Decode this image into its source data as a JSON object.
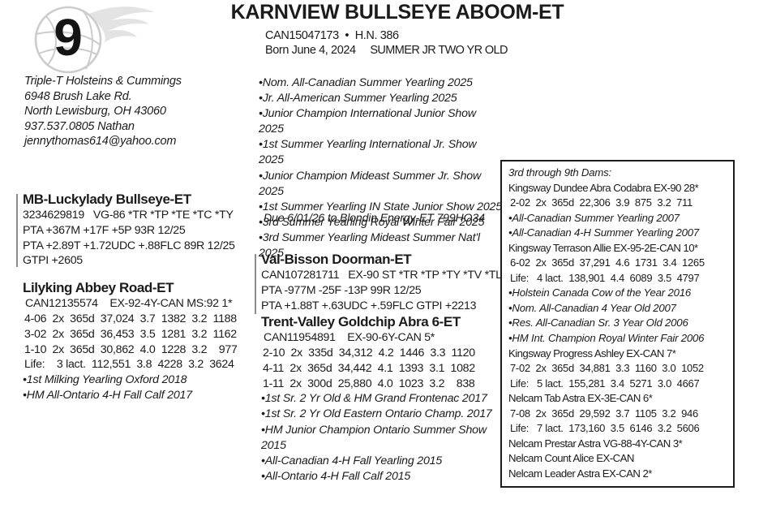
{
  "colors": {
    "text": "#1b1b1b",
    "logo_gray": "#dcdcdc",
    "rule_gray": "#8d8d8d",
    "box_border": "#1c1c1c"
  },
  "header": {
    "lot_number": "9",
    "title": "KARNVIEW BULLSEYE ABOOM-ET",
    "registration": "CAN15047173",
    "separator": "•",
    "herd_number": "H.N. 386",
    "born": "Born June 4, 2024",
    "age_class": "SUMMER JR TWO YR OLD"
  },
  "consignor": {
    "name": "Triple-T Holsteins & Cummings",
    "address1": "6948 Brush Lake Rd.",
    "address2": "North Lewisburg, OH  43060",
    "phone": "937.537.0805 Nathan",
    "email": "jennythomas614@yahoo.com"
  },
  "sire": {
    "name": "MB-Luckylady Bullseye-ET",
    "lines": [
      "3234629819   VG-86 *TR *TP *TE *TC *TY",
      "PTA +367M +17F +5P 93R 12/25",
      "PTA +2.89T +1.72UDC +.88FLC 89R 12/25",
      "GTPI +2605"
    ]
  },
  "dam": {
    "name": "Lilyking Abbey Road-ET",
    "id_line": "CAN12135574    EX-92-4Y-CAN MS:92 1*",
    "records": [
      "4-06  2x  365d  37,024  3.7  1382  3.2  1188",
      "3-02  2x  365d  36,453  3.5  1281  3.2  1162",
      "1-10  2x  365d  30,862  4.0  1228  3.2    977",
      "Life:    3 lact.  112,551  3.8  4228  3.2  3624"
    ],
    "awards": [
      "•1st Milking Yearling Oxford 2018",
      "•HM All-Ontario 4-H Fall Calf 2017"
    ]
  },
  "performance": {
    "awards": [
      "•Nom. All-Canadian Summer Yearling 2025",
      "•Jr. All-American Summer Yearling 2025",
      "•Junior Champion International Junior Show 2025",
      "•1st Summer Yearling International Jr. Show 2025",
      "•Junior Champion Mideast Summer Jr. Show 2025",
      "•1st Summer Yearling IN State Junior Show 2025",
      "•3rd Summer Yearling Royal Winter Fair 2025",
      "•3rd Summer Yearling Mideast Summer Nat'l 2025"
    ],
    "due_line": "Due 6/01/26 to Blondin Energy-ET 799HO34"
  },
  "grandsire": {
    "name": "Val-Bisson Doorman-ET",
    "lines": [
      "CAN107281711   EX-90 ST *TR *TP *TY *TV *TL",
      "PTA -977M -25F -13P 99R 12/25",
      "PTA +1.88T +.63UDC +.59FLC GTPI +2213"
    ]
  },
  "granddam": {
    "name": "Trent-Valley Goldchip Abra 6-ET",
    "id_line": "CAN11954891    EX-90-6Y-CAN 5*",
    "records": [
      "2-10  2x  335d  34,312  4.2  1446  3.3  1120",
      "4-11  2x  365d  34,442  4.1  1393  3.1  1082",
      "1-11  2x  300d  25,880  4.0  1023  3.2    838"
    ],
    "awards": [
      "•1st Sr. 2 Yr Old & HM Grand Frontenac 2017",
      "•1st Sr. 2 Yr Old Eastern Ontario Champ. 2017",
      "•HM Junior Champion Ontario Summer Show 2015",
      "•All-Canadian 4-H Fall Yearling 2015",
      "•All-Ontario 4-H Fall Calf 2015"
    ]
  },
  "maternal_line_box": {
    "heading": "3rd through 9th Dams:",
    "entries": [
      {
        "text": "Kingsway Dundee Abra Codabra EX-90 28*",
        "style": "name"
      },
      {
        "text": "2-02  2x  365d  22,306  3.9  875  3.2  711",
        "style": "record"
      },
      {
        "text": "•All-Canadian Summer Yearling 2007",
        "style": "award"
      },
      {
        "text": "•All-Canadian 4-H Summer Yearling 2007",
        "style": "award"
      },
      {
        "text": "Kingsway Terrason Allie EX-95-2E-CAN 10*",
        "style": "name"
      },
      {
        "text": "6-02  2x  365d  37,291  4.6  1731  3.4  1265",
        "style": "record"
      },
      {
        "text": "Life:   4 lact.  138,901  4.4  6089  3.5  4797",
        "style": "record"
      },
      {
        "text": "•Holstein Canada Cow of the Year 2016",
        "style": "award"
      },
      {
        "text": "•Nom. All-Canadian 4 Year Old 2007",
        "style": "award"
      },
      {
        "text": "•Res. All-Canadian Sr. 3 Year Old 2006",
        "style": "award"
      },
      {
        "text": "•HM Int. Champion Royal Winter Fair 2006",
        "style": "award"
      },
      {
        "text": "Kingsway Progress Ashley  EX-CAN 7*",
        "style": "name"
      },
      {
        "text": "7-02  2x  365d  34,881  3.3  1160  3.0  1052",
        "style": "record"
      },
      {
        "text": "Life:   5 lact.  155,281  3.4  5271  3.0  4667",
        "style": "record"
      },
      {
        "text": "Nelcam Tab Astra EX-3E-CAN 6*",
        "style": "name"
      },
      {
        "text": "7-08  2x  365d  29,592  3.7  1105  3.2  946",
        "style": "record"
      },
      {
        "text": "Life:   7 lact.  173,160  3.5  6146  3.2  5606",
        "style": "record"
      },
      {
        "text": "Nelcam Prestar Astra VG-88-4Y-CAN 3*",
        "style": "name"
      },
      {
        "text": "Nelcam Count Alice EX-CAN",
        "style": "name"
      },
      {
        "text": "Nelcam Leader Astra EX-CAN 2*",
        "style": "name"
      }
    ]
  }
}
